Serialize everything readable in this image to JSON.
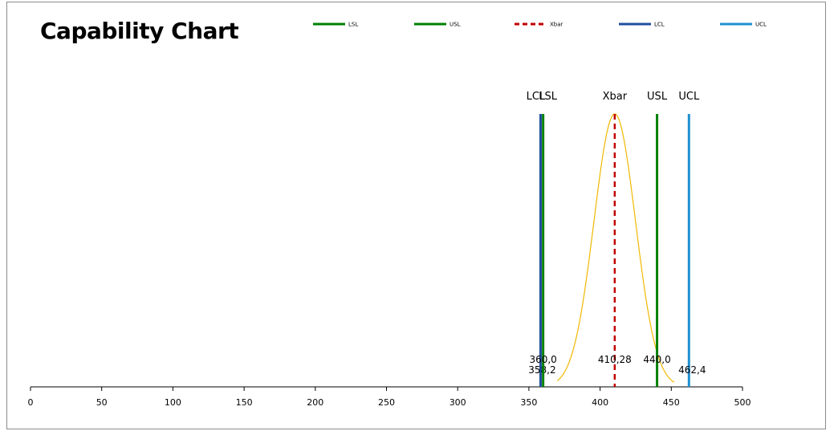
{
  "chart_data": {
    "type": "line",
    "title": "Capability Chart",
    "xlim": [
      0,
      500
    ],
    "x_ticks": [
      0,
      50,
      100,
      150,
      200,
      250,
      300,
      350,
      400,
      450,
      500
    ],
    "grid": false,
    "legend_position": "top",
    "legend": [
      {
        "name": "LSL",
        "color": "#008000",
        "style": "solid"
      },
      {
        "name": "USL",
        "color": "#008000",
        "style": "solid"
      },
      {
        "name": "Xbar",
        "color": "#c00000",
        "style": "dashed"
      },
      {
        "name": "LCL",
        "color": "#1f4e9c",
        "style": "solid"
      },
      {
        "name": "UCL",
        "color": "#1e90d0",
        "style": "solid"
      }
    ],
    "vertical_lines": [
      {
        "name": "LCL",
        "value": 358.2,
        "value_label": "358,2",
        "color": "#1f4e9c",
        "style": "solid"
      },
      {
        "name": "LSL",
        "value": 360.0,
        "value_label": "360,0",
        "color": "#008000",
        "style": "solid"
      },
      {
        "name": "Xbar",
        "value": 410.28,
        "value_label": "410,28",
        "color": "#c00000",
        "style": "dashed"
      },
      {
        "name": "USL",
        "value": 440.0,
        "value_label": "440,0",
        "color": "#008000",
        "style": "solid"
      },
      {
        "name": "UCL",
        "value": 462.4,
        "value_label": "462,4",
        "color": "#1e90d0",
        "style": "solid"
      }
    ],
    "distribution_curve": {
      "type": "normal",
      "mean": 410.28,
      "std_dev": 14.6,
      "color": "#f0b800"
    }
  }
}
